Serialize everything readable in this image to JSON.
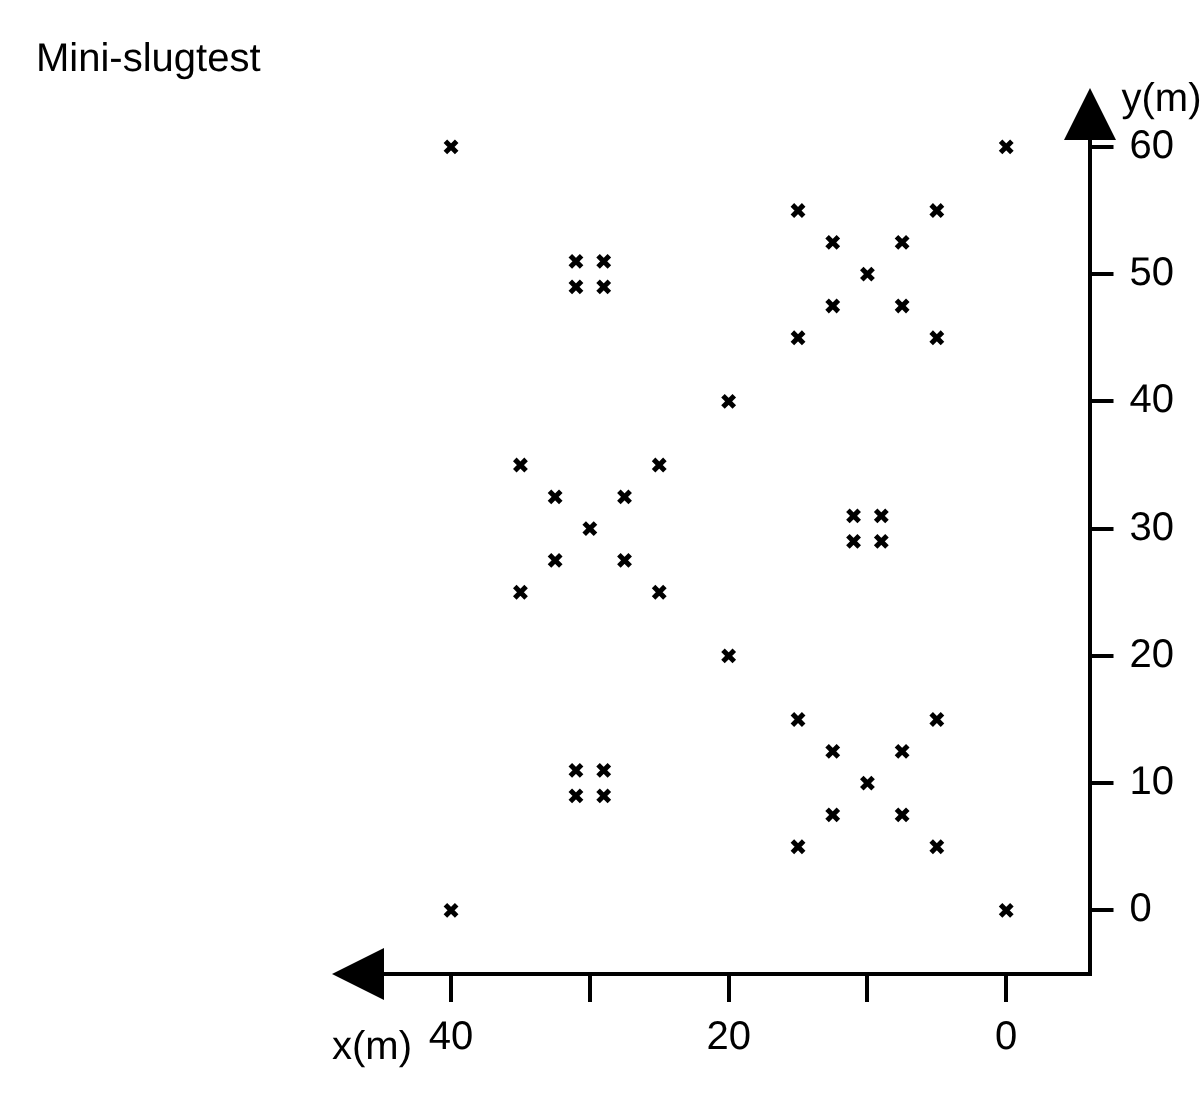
{
  "chart_data": {
    "type": "scatter",
    "title": "Mini-slugtest",
    "xlabel": "x(m)",
    "ylabel": "y(m)",
    "series": [
      {
        "color": "#000000",
        "x": [
          40,
          0,
          40,
          0,
          20,
          20,
          10,
          15,
          5,
          15,
          5,
          12.5,
          7.5,
          12.5,
          7.5,
          30,
          35,
          25,
          35,
          25,
          32.5,
          27.5,
          32.5,
          27.5,
          10,
          15,
          5,
          15,
          5,
          12.5,
          7.5,
          12.5,
          7.5,
          31,
          29,
          31,
          29,
          11,
          9,
          11,
          9,
          31,
          29,
          31,
          29
        ],
        "values": [
          60,
          60,
          0,
          0,
          40,
          20,
          50,
          55,
          55,
          45,
          45,
          52.5,
          52.5,
          47.5,
          47.5,
          30,
          35,
          35,
          25,
          25,
          32.5,
          32.5,
          27.5,
          27.5,
          10,
          15,
          15,
          5,
          5,
          12.5,
          12.5,
          7.5,
          7.5,
          51,
          51,
          49,
          49,
          31,
          31,
          29,
          29,
          11,
          11,
          9,
          9
        ]
      }
    ],
    "xlim": [
      48,
      -6
    ],
    "ylim": [
      -5,
      64
    ],
    "xticks": [
      40,
      {
        "value": 30,
        "label": null
      },
      20,
      {
        "value": 10,
        "label": null
      },
      0
    ],
    "yticks": [
      0,
      10,
      20,
      30,
      40,
      50,
      60
    ],
    "marker": "cross",
    "grid": false,
    "legend": false
  }
}
